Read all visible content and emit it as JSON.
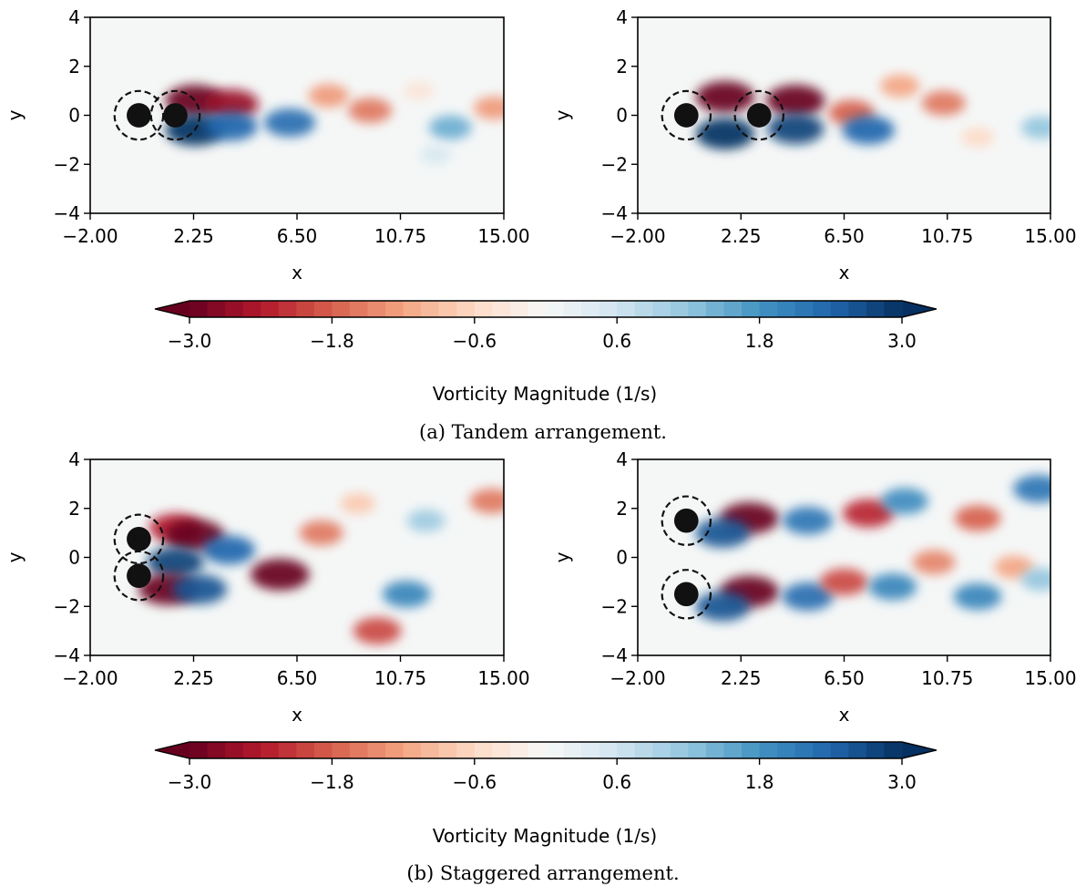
{
  "figure": {
    "colorbar_label": "Vorticity Magnitude (1/s)",
    "captions": [
      "(a) Tandem arrangement.",
      "(b) Staggered arrangement."
    ]
  },
  "colors": {
    "negative_max": "#67001f",
    "positive_max": "#053061",
    "background": "#f5f7f7",
    "cylinder": "#111111"
  },
  "colorbar": {
    "colormap": "RdBu",
    "vmin": -3.0,
    "vmax": 3.0,
    "levels": 40,
    "extend": "both",
    "ticks": [
      "-3.0",
      "-1.8",
      "-0.6",
      "0.6",
      "1.8",
      "3.0"
    ]
  },
  "chart_data": [
    {
      "type": "heatmap",
      "panel": "tandem-left",
      "xlabel": "x",
      "ylabel": "y",
      "xlim": [
        -2.0,
        15.0
      ],
      "ylim": [
        -4,
        4
      ],
      "xticks": [
        "-2.00",
        "2.25",
        "6.50",
        "10.75",
        "15.00"
      ],
      "yticks": [
        "-4",
        "-2",
        "0",
        "2",
        "4"
      ],
      "cylinders": [
        {
          "x": 0,
          "y": 0
        },
        {
          "x": 1.5,
          "y": 0
        }
      ],
      "vortices": [
        {
          "x": 2.3,
          "y": 0.6,
          "w": -3.0
        },
        {
          "x": 3.8,
          "y": 0.45,
          "w": -2.6
        },
        {
          "x": 2.3,
          "y": -0.6,
          "w": 3.0
        },
        {
          "x": 3.8,
          "y": -0.45,
          "w": 2.4
        },
        {
          "x": 6.2,
          "y": -0.3,
          "w": 2.3
        },
        {
          "x": 7.8,
          "y": 0.8,
          "w": -1.3
        },
        {
          "x": 9.5,
          "y": 0.2,
          "w": -1.6
        },
        {
          "x": 11.5,
          "y": 1.0,
          "w": -0.4
        },
        {
          "x": 12.8,
          "y": -0.5,
          "w": 1.5
        },
        {
          "x": 12.2,
          "y": -1.6,
          "w": 0.5
        },
        {
          "x": 14.6,
          "y": 0.3,
          "w": -1.3
        }
      ]
    },
    {
      "type": "heatmap",
      "panel": "tandem-right",
      "xlabel": "x",
      "ylabel": "y",
      "xlim": [
        -2.0,
        15.0
      ],
      "ylim": [
        -4,
        4
      ],
      "xticks": [
        "-2.00",
        "2.25",
        "6.50",
        "10.75",
        "15.00"
      ],
      "yticks": [
        "-4",
        "-2",
        "0",
        "2",
        "4"
      ],
      "cylinders": [
        {
          "x": 0,
          "y": 0
        },
        {
          "x": 3.0,
          "y": 0
        }
      ],
      "vortices": [
        {
          "x": 1.6,
          "y": 0.75,
          "w": -3.0
        },
        {
          "x": 4.5,
          "y": 0.6,
          "w": -3.0
        },
        {
          "x": 1.6,
          "y": -0.75,
          "w": 3.0
        },
        {
          "x": 4.5,
          "y": -0.55,
          "w": 2.8
        },
        {
          "x": 6.8,
          "y": 0.1,
          "w": -1.8
        },
        {
          "x": 7.5,
          "y": -0.6,
          "w": 2.4
        },
        {
          "x": 8.8,
          "y": 1.2,
          "w": -1.2
        },
        {
          "x": 10.6,
          "y": 0.5,
          "w": -1.6
        },
        {
          "x": 12.0,
          "y": -0.9,
          "w": -0.6
        },
        {
          "x": 14.6,
          "y": -0.5,
          "w": 1.2
        }
      ]
    },
    {
      "type": "heatmap",
      "panel": "staggered-left",
      "xlabel": "x",
      "ylabel": "y",
      "xlim": [
        -2.0,
        15.0
      ],
      "ylim": [
        -4,
        4
      ],
      "xticks": [
        "-2.00",
        "2.25",
        "6.50",
        "10.75",
        "15.00"
      ],
      "yticks": [
        "-4",
        "-2",
        "0",
        "2",
        "4"
      ],
      "cylinders": [
        {
          "x": 0,
          "y": 0.75
        },
        {
          "x": 0,
          "y": -0.75
        }
      ],
      "vortices": [
        {
          "x": 1.5,
          "y": 1.2,
          "w": -2.4
        },
        {
          "x": 2.3,
          "y": 0.9,
          "w": -3.0
        },
        {
          "x": 1.5,
          "y": -0.2,
          "w": 2.8
        },
        {
          "x": 1.2,
          "y": -1.3,
          "w": -3.0
        },
        {
          "x": 2.5,
          "y": -1.3,
          "w": 2.6
        },
        {
          "x": 3.7,
          "y": 0.3,
          "w": 2.4
        },
        {
          "x": 5.8,
          "y": -0.7,
          "w": -3.0
        },
        {
          "x": 7.5,
          "y": 1.0,
          "w": -1.6
        },
        {
          "x": 9.0,
          "y": 2.2,
          "w": -0.8
        },
        {
          "x": 9.8,
          "y": -3.0,
          "w": -2.0
        },
        {
          "x": 11.0,
          "y": -1.5,
          "w": 2.0
        },
        {
          "x": 11.8,
          "y": 1.5,
          "w": 1.1
        },
        {
          "x": 14.5,
          "y": 2.3,
          "w": -1.6
        }
      ]
    },
    {
      "type": "heatmap",
      "panel": "staggered-right",
      "xlabel": "x",
      "ylabel": "y",
      "xlim": [
        -2.0,
        15.0
      ],
      "ylim": [
        -4,
        4
      ],
      "xticks": [
        "-2.00",
        "2.25",
        "6.50",
        "10.75",
        "15.00"
      ],
      "yticks": [
        "-4",
        "-2",
        "0",
        "2",
        "4"
      ],
      "cylinders": [
        {
          "x": 0,
          "y": 1.5
        },
        {
          "x": 0,
          "y": -1.5
        }
      ],
      "vortices": [
        {
          "x": 2.6,
          "y": 1.6,
          "w": -3.0
        },
        {
          "x": 1.5,
          "y": 1.0,
          "w": 2.6
        },
        {
          "x": 2.6,
          "y": -1.4,
          "w": -3.0
        },
        {
          "x": 1.5,
          "y": -2.0,
          "w": 2.6
        },
        {
          "x": 5.0,
          "y": 1.5,
          "w": 2.2
        },
        {
          "x": 7.5,
          "y": 1.8,
          "w": -2.3
        },
        {
          "x": 9.0,
          "y": 2.3,
          "w": 1.9
        },
        {
          "x": 12.0,
          "y": 1.6,
          "w": -1.8
        },
        {
          "x": 14.5,
          "y": 2.8,
          "w": 2.2
        },
        {
          "x": 5.0,
          "y": -1.6,
          "w": 2.3
        },
        {
          "x": 6.5,
          "y": -1.0,
          "w": -2.0
        },
        {
          "x": 8.5,
          "y": -1.2,
          "w": 2.0
        },
        {
          "x": 10.2,
          "y": -0.2,
          "w": -1.5
        },
        {
          "x": 12.0,
          "y": -1.6,
          "w": 2.0
        },
        {
          "x": 13.5,
          "y": -0.4,
          "w": -1.2
        },
        {
          "x": 14.6,
          "y": -0.9,
          "w": 1.2
        }
      ]
    }
  ]
}
